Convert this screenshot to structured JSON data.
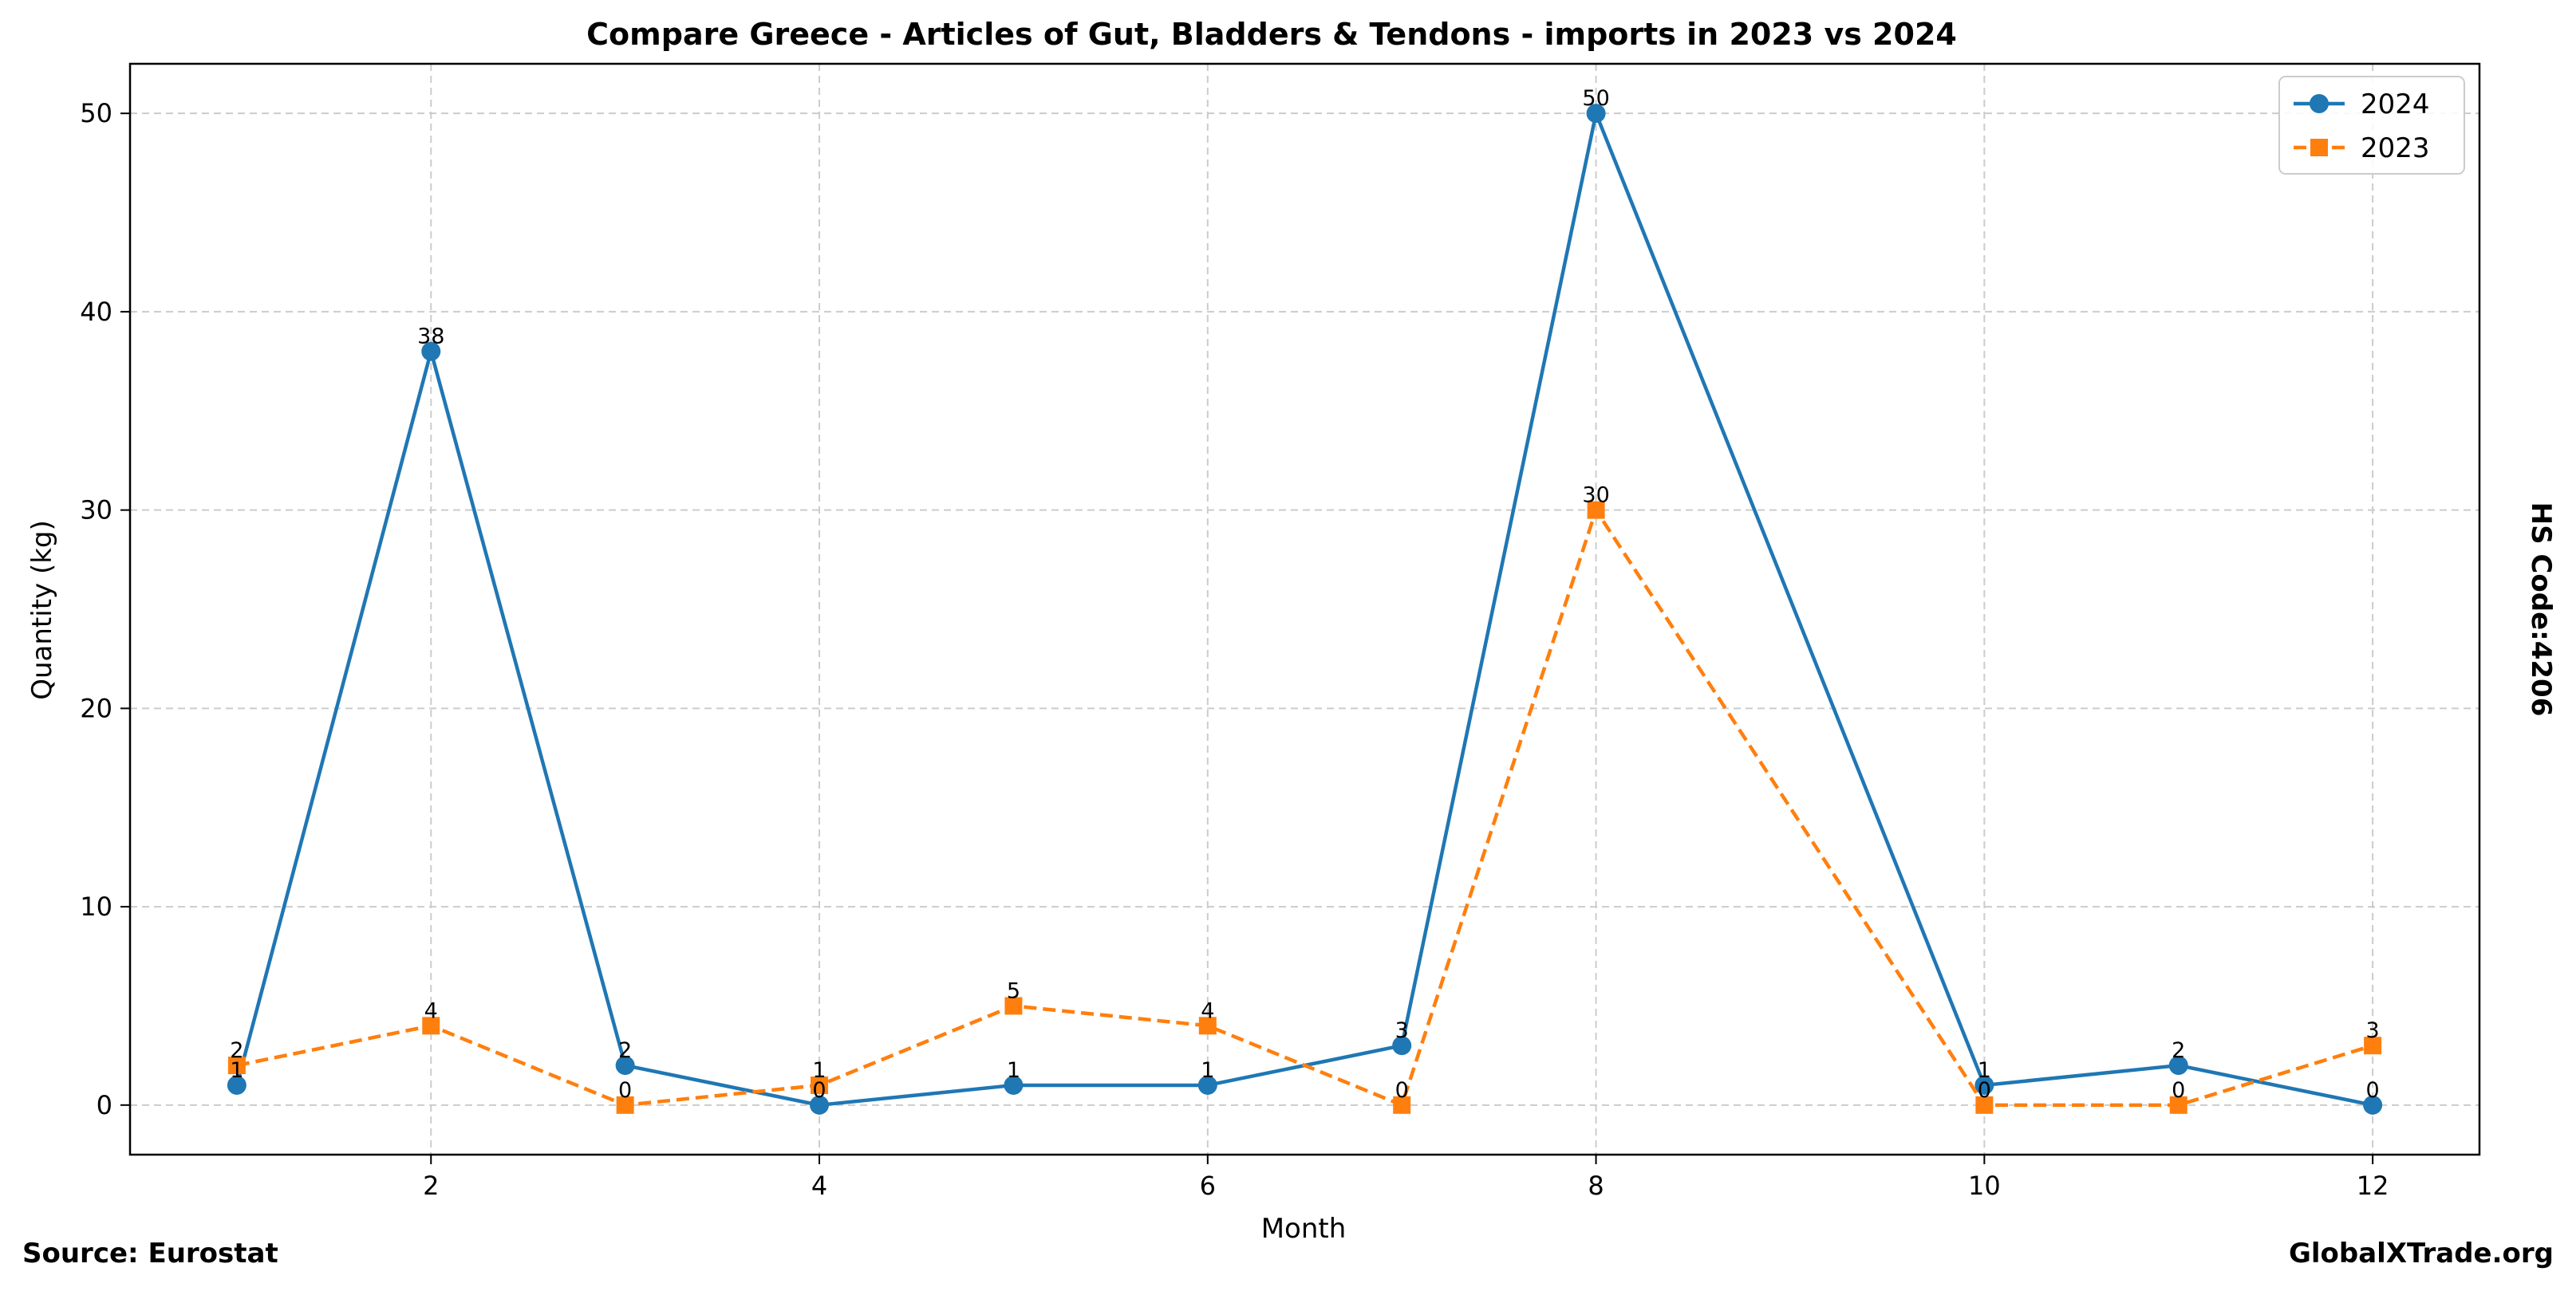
{
  "chart_data": {
    "type": "line",
    "title": "Compare Greece - Articles of Gut, Bladders & Tendons - imports in 2023 vs 2024",
    "xlabel": "Month",
    "ylabel": "Quantity (kg)",
    "xlim": [
      0.45,
      12.55
    ],
    "ylim": [
      -2.5,
      52.5
    ],
    "xticks": [
      2,
      4,
      6,
      8,
      10,
      12
    ],
    "yticks": [
      0,
      10,
      20,
      30,
      40,
      50
    ],
    "grid": true,
    "legend_position": "top-right",
    "series": [
      {
        "name": "2024",
        "color": "#1f77b4",
        "marker": "circle",
        "line_style": "solid",
        "x": [
          1,
          2,
          3,
          4,
          5,
          6,
          7,
          8,
          10,
          11,
          12
        ],
        "values": [
          1,
          38,
          2,
          0,
          1,
          1,
          3,
          50,
          1,
          2,
          0
        ]
      },
      {
        "name": "2023",
        "color": "#ff7f0e",
        "marker": "square",
        "line_style": "dashed",
        "x": [
          1,
          2,
          3,
          4,
          5,
          6,
          7,
          8,
          10,
          11,
          12
        ],
        "values": [
          2,
          4,
          0,
          1,
          5,
          4,
          0,
          30,
          0,
          0,
          3
        ]
      }
    ]
  },
  "footer": {
    "source": "Source: Eurostat",
    "website": "GlobalXTrade.org",
    "hs_code": "HS Code:4206"
  }
}
